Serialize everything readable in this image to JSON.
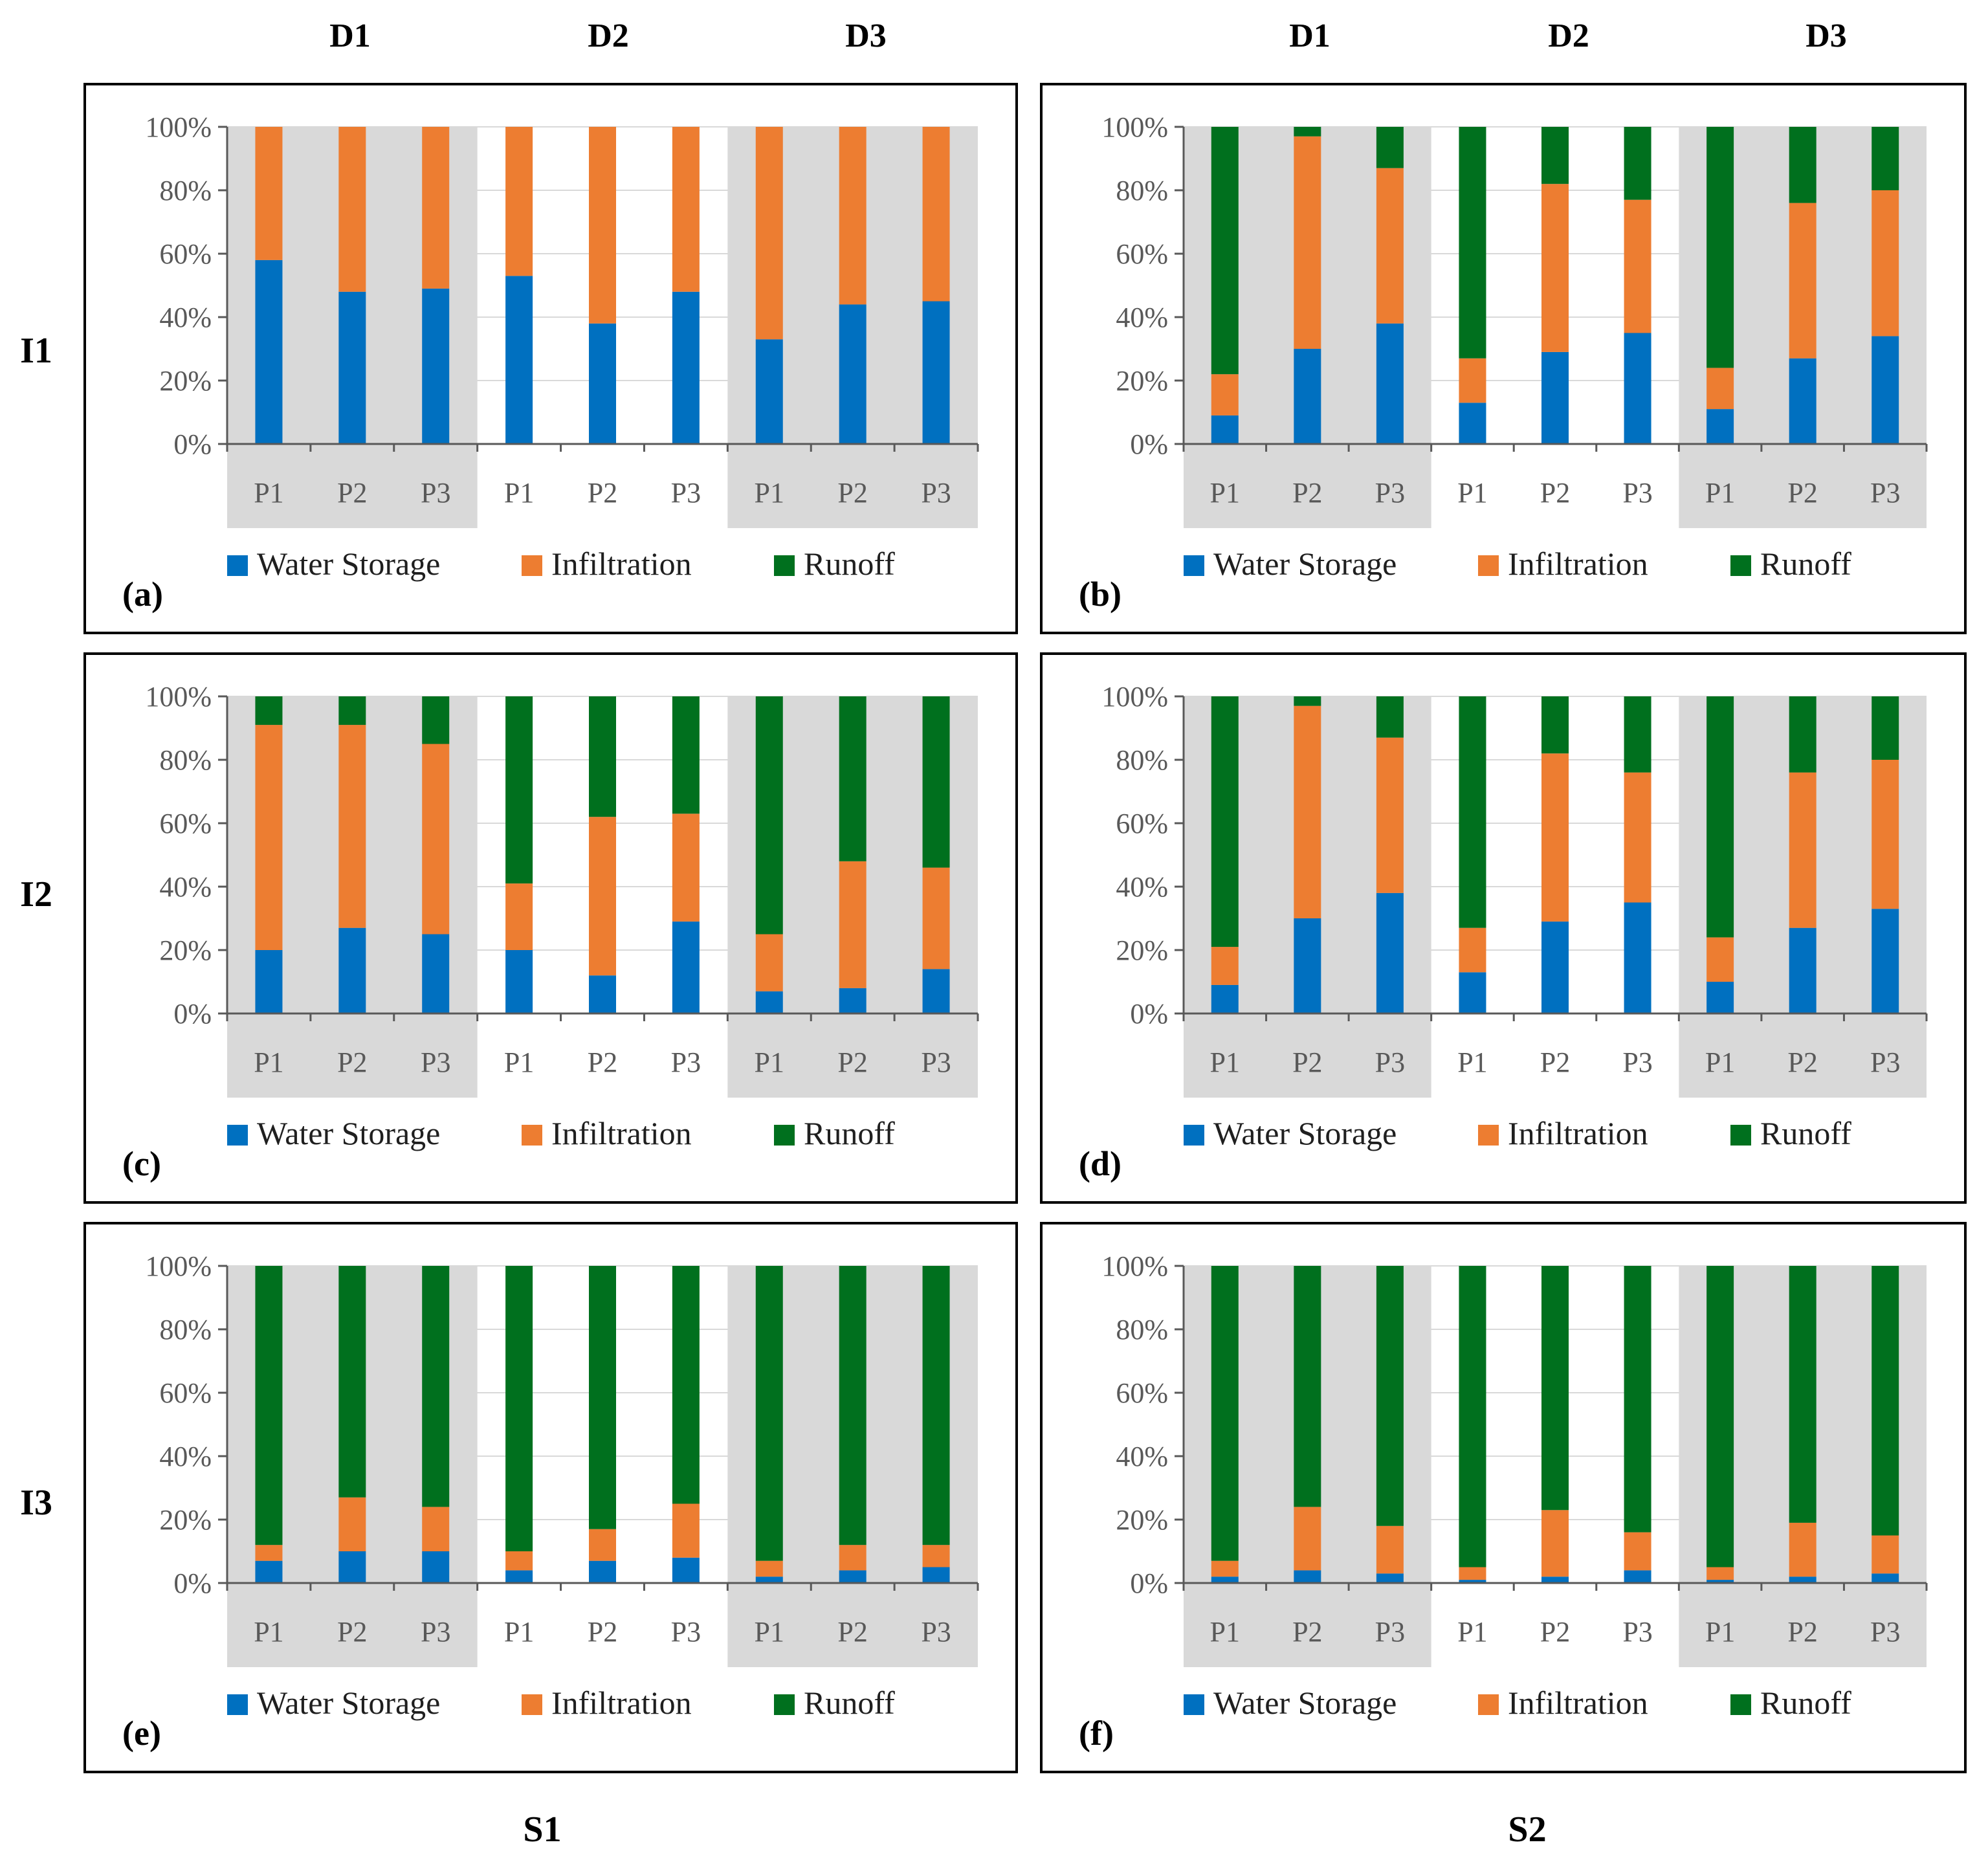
{
  "colors": {
    "water_storage": "#0070C0",
    "infiltration": "#ED7D31",
    "runoff": "#00701E",
    "band": "#D9D9D9",
    "grid": "#D9D9D9",
    "axis": "#595959"
  },
  "column_headers": {
    "left": [
      "D1",
      "D2",
      "D3"
    ],
    "right": [
      "D1",
      "D2",
      "D3"
    ]
  },
  "row_labels": [
    "I1",
    "I2",
    "I3"
  ],
  "footer_labels": [
    "S1",
    "S2"
  ],
  "chart_data": [
    {
      "type": "bar",
      "stacked": true,
      "panel": "(a)",
      "intensity": "I1",
      "scenario": "S1",
      "categories": [
        "P1",
        "P2",
        "P3",
        "P1",
        "P2",
        "P3",
        "P1",
        "P2",
        "P3"
      ],
      "groups": [
        "D1",
        "D2",
        "D3"
      ],
      "yticks": [
        "0%",
        "20%",
        "40%",
        "60%",
        "80%",
        "100%"
      ],
      "ylim": [
        0,
        100
      ],
      "series": [
        {
          "name": "Water Storage",
          "values": [
            58,
            48,
            49,
            53,
            38,
            48,
            33,
            44,
            45
          ]
        },
        {
          "name": "Infiltration",
          "values": [
            42,
            52,
            51,
            47,
            62,
            52,
            67,
            56,
            55
          ]
        },
        {
          "name": "Runoff",
          "values": [
            0,
            0,
            0,
            0,
            0,
            0,
            0,
            0,
            0
          ]
        }
      ]
    },
    {
      "type": "bar",
      "stacked": true,
      "panel": "(b)",
      "intensity": "I1",
      "scenario": "S2",
      "categories": [
        "P1",
        "P2",
        "P3",
        "P1",
        "P2",
        "P3",
        "P1",
        "P2",
        "P3"
      ],
      "groups": [
        "D1",
        "D2",
        "D3"
      ],
      "yticks": [
        "0%",
        "20%",
        "40%",
        "60%",
        "80%",
        "100%"
      ],
      "ylim": [
        0,
        100
      ],
      "series": [
        {
          "name": "Water Storage",
          "values": [
            9,
            30,
            38,
            13,
            29,
            35,
            11,
            27,
            34
          ]
        },
        {
          "name": "Infiltration",
          "values": [
            13,
            67,
            49,
            14,
            53,
            42,
            13,
            49,
            46
          ]
        },
        {
          "name": "Runoff",
          "values": [
            78,
            3,
            13,
            73,
            18,
            23,
            76,
            24,
            20
          ]
        }
      ]
    },
    {
      "type": "bar",
      "stacked": true,
      "panel": "(c)",
      "intensity": "I2",
      "scenario": "S1",
      "categories": [
        "P1",
        "P2",
        "P3",
        "P1",
        "P2",
        "P3",
        "P1",
        "P2",
        "P3"
      ],
      "groups": [
        "D1",
        "D2",
        "D3"
      ],
      "yticks": [
        "0%",
        "20%",
        "40%",
        "60%",
        "80%",
        "100%"
      ],
      "ylim": [
        0,
        100
      ],
      "series": [
        {
          "name": "Water Storage",
          "values": [
            20,
            27,
            25,
            20,
            12,
            29,
            7,
            8,
            14
          ]
        },
        {
          "name": "Infiltration",
          "values": [
            71,
            64,
            60,
            21,
            50,
            34,
            18,
            40,
            32
          ]
        },
        {
          "name": "Runoff",
          "values": [
            9,
            9,
            15,
            59,
            38,
            37,
            75,
            52,
            54
          ]
        }
      ]
    },
    {
      "type": "bar",
      "stacked": true,
      "panel": "(d)",
      "intensity": "I2",
      "scenario": "S2",
      "categories": [
        "P1",
        "P2",
        "P3",
        "P1",
        "P2",
        "P3",
        "P1",
        "P2",
        "P3"
      ],
      "groups": [
        "D1",
        "D2",
        "D3"
      ],
      "yticks": [
        "0%",
        "20%",
        "40%",
        "60%",
        "80%",
        "100%"
      ],
      "ylim": [
        0,
        100
      ],
      "series": [
        {
          "name": "Water Storage",
          "values": [
            9,
            30,
            38,
            13,
            29,
            35,
            10,
            27,
            33
          ]
        },
        {
          "name": "Infiltration",
          "values": [
            12,
            67,
            49,
            14,
            53,
            41,
            14,
            49,
            47
          ]
        },
        {
          "name": "Runoff",
          "values": [
            79,
            3,
            13,
            73,
            18,
            24,
            76,
            24,
            20
          ]
        }
      ]
    },
    {
      "type": "bar",
      "stacked": true,
      "panel": "(e)",
      "intensity": "I3",
      "scenario": "S1",
      "categories": [
        "P1",
        "P2",
        "P3",
        "P1",
        "P2",
        "P3",
        "P1",
        "P2",
        "P3"
      ],
      "groups": [
        "D1",
        "D2",
        "D3"
      ],
      "yticks": [
        "0%",
        "20%",
        "40%",
        "60%",
        "80%",
        "100%"
      ],
      "ylim": [
        0,
        100
      ],
      "series": [
        {
          "name": "Water Storage",
          "values": [
            7,
            10,
            10,
            4,
            7,
            8,
            2,
            4,
            5
          ]
        },
        {
          "name": "Infiltration",
          "values": [
            5,
            17,
            14,
            6,
            10,
            17,
            5,
            8,
            7
          ]
        },
        {
          "name": "Runoff",
          "values": [
            88,
            73,
            76,
            90,
            83,
            75,
            93,
            88,
            88
          ]
        }
      ]
    },
    {
      "type": "bar",
      "stacked": true,
      "panel": "(f)",
      "intensity": "I3",
      "scenario": "S2",
      "categories": [
        "P1",
        "P2",
        "P3",
        "P1",
        "P2",
        "P3",
        "P1",
        "P2",
        "P3"
      ],
      "groups": [
        "D1",
        "D2",
        "D3"
      ],
      "yticks": [
        "0%",
        "20%",
        "40%",
        "60%",
        "80%",
        "100%"
      ],
      "ylim": [
        0,
        100
      ],
      "series": [
        {
          "name": "Water Storage",
          "values": [
            2,
            4,
            3,
            1,
            2,
            4,
            1,
            2,
            3
          ]
        },
        {
          "name": "Infiltration",
          "values": [
            5,
            20,
            15,
            4,
            21,
            12,
            4,
            17,
            12
          ]
        },
        {
          "name": "Runoff",
          "values": [
            93,
            76,
            82,
            95,
            77,
            84,
            95,
            81,
            85
          ]
        }
      ]
    }
  ]
}
